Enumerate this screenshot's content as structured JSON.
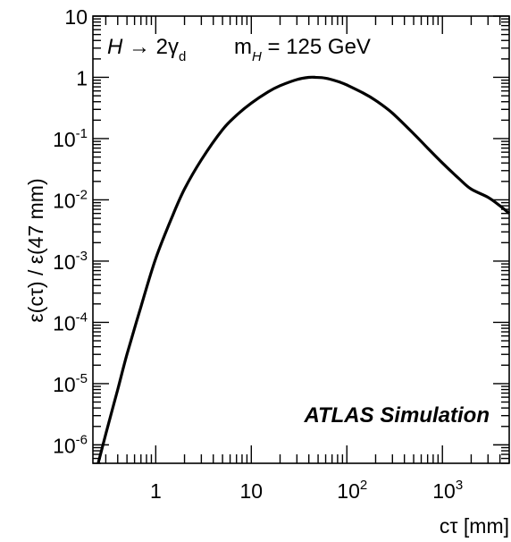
{
  "chart_data": {
    "type": "line",
    "x_scale": "log",
    "y_scale": "log",
    "xlim": [
      0.22,
      5000
    ],
    "ylim": [
      5e-07,
      10
    ],
    "xlabel": "cτ [mm]",
    "ylabel": "ε(cτ) / ε(47 mm)",
    "x_ticks": [
      {
        "value": 1,
        "base": "1",
        "exp": ""
      },
      {
        "value": 10,
        "base": "10",
        "exp": ""
      },
      {
        "value": 100,
        "base": "10",
        "exp": "2"
      },
      {
        "value": 1000,
        "base": "10",
        "exp": "3"
      }
    ],
    "y_ticks": [
      {
        "value": 1e-06,
        "base": "10",
        "exp": "-6"
      },
      {
        "value": 1e-05,
        "base": "10",
        "exp": "-5"
      },
      {
        "value": 0.0001,
        "base": "10",
        "exp": "-4"
      },
      {
        "value": 0.001,
        "base": "10",
        "exp": "-3"
      },
      {
        "value": 0.01,
        "base": "10",
        "exp": "-2"
      },
      {
        "value": 0.1,
        "base": "10",
        "exp": "-1"
      },
      {
        "value": 1,
        "base": "1",
        "exp": ""
      },
      {
        "value": 10,
        "base": "10",
        "exp": ""
      }
    ],
    "series": [
      {
        "color": "#000000",
        "x": [
          0.25,
          0.3,
          0.4,
          0.5,
          0.7,
          1,
          1.5,
          2,
          3,
          5,
          7,
          10,
          15,
          20,
          30,
          40,
          47,
          60,
          80,
          100,
          150,
          200,
          300,
          500,
          700,
          1000,
          1500,
          2000,
          3000,
          4000,
          5000
        ],
        "y": [
          5e-07,
          1.5e-06,
          8e-06,
          3e-05,
          0.00018,
          0.0011,
          0.0055,
          0.015,
          0.045,
          0.14,
          0.24,
          0.38,
          0.58,
          0.73,
          0.92,
          1.0,
          1.0,
          0.97,
          0.86,
          0.75,
          0.55,
          0.42,
          0.26,
          0.12,
          0.07,
          0.04,
          0.022,
          0.015,
          0.011,
          0.008,
          0.006
        ]
      }
    ],
    "annotations": {
      "process": {
        "lhs": "H",
        "arrow": " → 2γ",
        "sub_d": "d"
      },
      "mass": {
        "label": "m",
        "sub_h": "H",
        "value": " = 125 GeV"
      },
      "experiment": "ATLAS Simulation"
    }
  }
}
